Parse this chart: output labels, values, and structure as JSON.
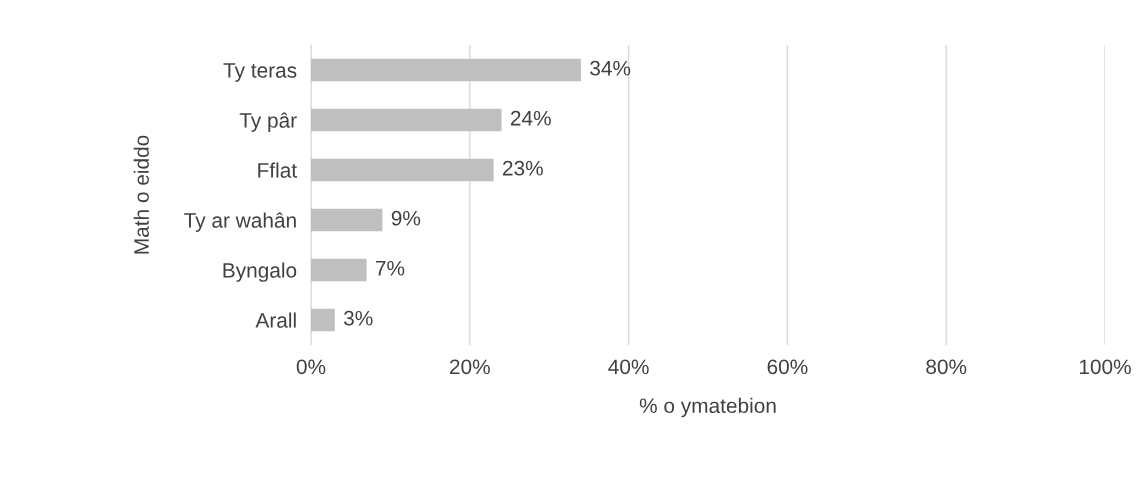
{
  "chart_data": {
    "type": "bar",
    "orientation": "horizontal",
    "xlabel": "% o ymatebion",
    "ylabel": "Math o eiddo",
    "categories": [
      "Ty teras",
      "Ty pâr",
      "Fflat",
      "Ty ar wahân",
      "Byngalo",
      "Arall"
    ],
    "values": [
      34,
      24,
      23,
      9,
      7,
      3
    ],
    "value_labels": [
      "34%",
      "24%",
      "23%",
      "9%",
      "7%",
      "3%"
    ],
    "color": "#bfbfbf",
    "xlim": [
      0,
      100
    ],
    "xticks": [
      {
        "value": 0,
        "label": "0%"
      },
      {
        "value": 20,
        "label": "20%"
      },
      {
        "value": 40,
        "label": "40%"
      },
      {
        "value": 60,
        "label": "60%"
      },
      {
        "value": 80,
        "label": "80%"
      },
      {
        "value": 100,
        "label": "100%"
      }
    ],
    "grid": "x",
    "legend": false
  }
}
